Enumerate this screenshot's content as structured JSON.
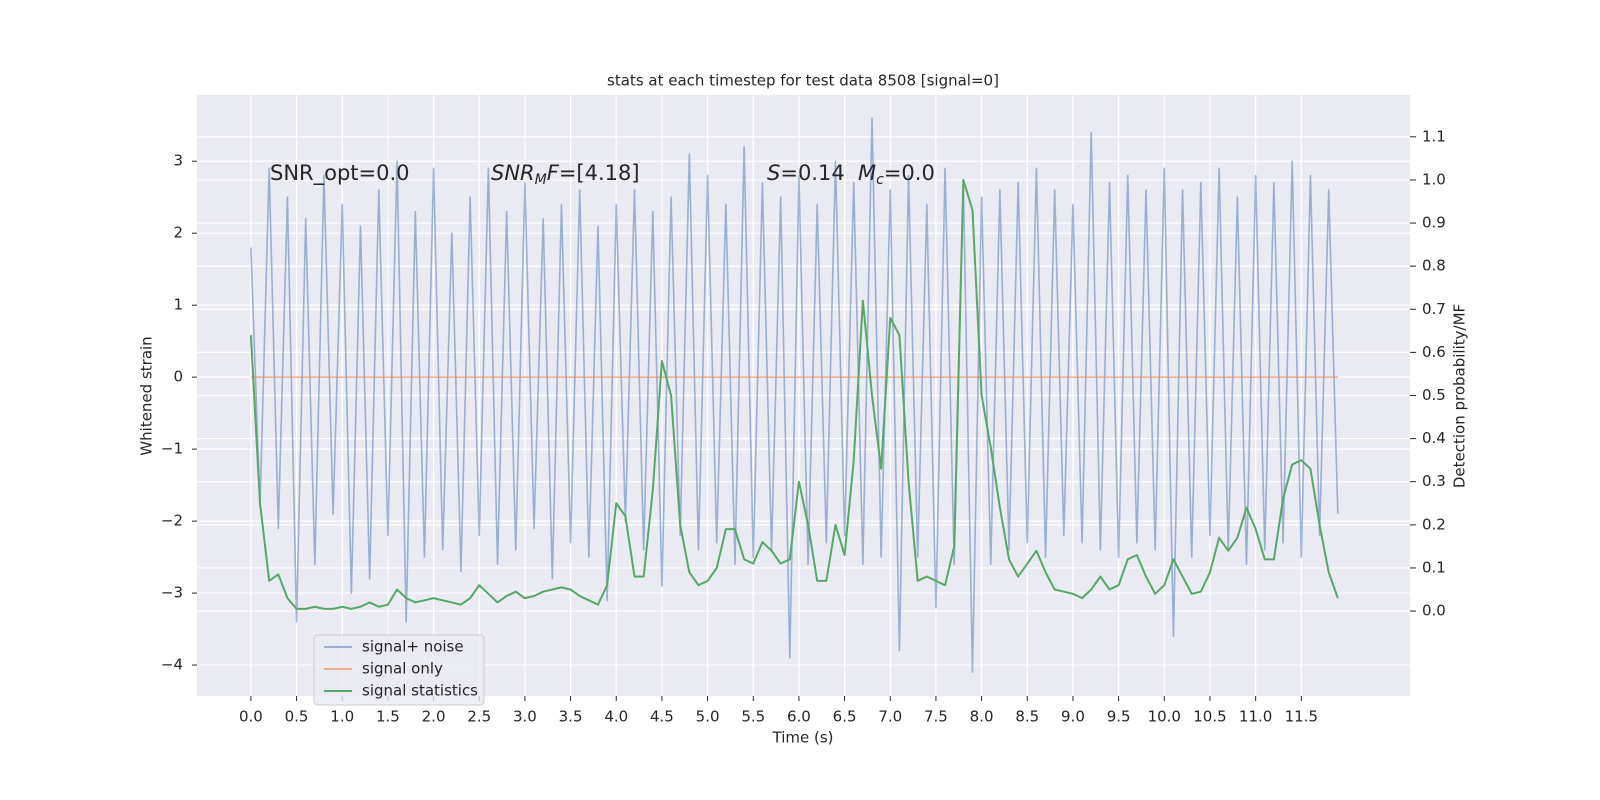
{
  "chart_data": {
    "type": "line",
    "title": "stats at each timestep for test data 8508 [signal=0]",
    "x_label": "Time (s)",
    "y_label": "Whitened strain",
    "y2_label": "Detection probability/MF",
    "x": [
      0,
      0.1,
      0.2,
      0.3,
      0.4,
      0.5,
      0.6,
      0.7,
      0.8,
      0.9,
      1,
      1.1,
      1.2,
      1.3,
      1.4,
      1.5,
      1.6,
      1.7,
      1.8,
      1.9,
      2,
      2.1,
      2.2,
      2.3,
      2.4,
      2.5,
      2.6,
      2.7,
      2.8,
      2.9,
      3,
      3.1,
      3.2,
      3.3,
      3.4,
      3.5,
      3.6,
      3.7,
      3.8,
      3.9,
      4,
      4.1,
      4.2,
      4.3,
      4.4,
      4.5,
      4.6,
      4.7,
      4.8,
      4.9,
      5,
      5.1,
      5.2,
      5.3,
      5.4,
      5.5,
      5.6,
      5.7,
      5.8,
      5.9,
      6,
      6.1,
      6.2,
      6.3,
      6.4,
      6.5,
      6.6,
      6.7,
      6.8,
      6.9,
      7,
      7.1,
      7.2,
      7.3,
      7.4,
      7.5,
      7.6,
      7.7,
      7.8,
      7.9,
      8,
      8.1,
      8.2,
      8.3,
      8.4,
      8.5,
      8.6,
      8.7,
      8.8,
      8.9,
      9,
      9.1,
      9.2,
      9.3,
      9.4,
      9.5,
      9.6,
      9.7,
      9.8,
      9.9,
      10,
      10.1,
      10.2,
      10.3,
      10.4,
      10.5,
      10.6,
      10.7,
      10.8,
      10.9,
      11,
      11.1,
      11.2,
      11.3,
      11.4,
      11.5,
      11.6,
      11.7,
      11.8,
      11.9
    ],
    "series": [
      {
        "name": "signal+ noise",
        "color": "#4c72b0",
        "opacity": 0.5,
        "values": [
          1.8,
          -1.8,
          2.9,
          -2.1,
          2.5,
          -3.4,
          2.2,
          -2.6,
          2.8,
          -1.9,
          2.4,
          -3.0,
          2.1,
          -2.8,
          2.6,
          -2.2,
          3.0,
          -3.4,
          2.3,
          -2.5,
          2.9,
          -2.4,
          2.0,
          -2.7,
          2.5,
          -2.2,
          2.9,
          -2.6,
          2.3,
          -2.4,
          2.7,
          -2.1,
          2.2,
          -2.8,
          2.4,
          -2.3,
          2.6,
          -2.5,
          2.1,
          -3.1,
          2.4,
          -2.0,
          2.6,
          -2.4,
          2.3,
          -2.9,
          2.5,
          -2.2,
          3.1,
          -2.4,
          2.8,
          -2.3,
          2.4,
          -2.6,
          3.2,
          -2.5,
          2.7,
          -2.4,
          2.5,
          -3.9,
          2.8,
          -2.6,
          2.4,
          -2.3,
          3.0,
          -2.2,
          2.7,
          -2.6,
          3.6,
          -2.5,
          2.6,
          -3.8,
          2.8,
          -2.5,
          2.4,
          -3.2,
          2.9,
          -2.6,
          2.7,
          -4.1,
          2.5,
          -2.6,
          2.6,
          -2.4,
          2.7,
          -2.3,
          2.9,
          -2.5,
          2.6,
          -2.2,
          2.4,
          -2.3,
          3.4,
          -2.4,
          2.7,
          -2.5,
          2.8,
          -2.3,
          2.6,
          -2.4,
          2.9,
          -3.6,
          2.6,
          -2.5,
          2.7,
          -2.2,
          2.9,
          -2.4,
          2.5,
          -2.6,
          2.8,
          -2.4,
          2.7,
          -2.3,
          3.0,
          -2.5,
          2.8,
          -2.2,
          2.6,
          -1.9
        ]
      },
      {
        "name": "signal only",
        "color": "#dd8452",
        "opacity": 0.6,
        "x": [
          0,
          11.9
        ],
        "values": [
          0,
          0
        ]
      },
      {
        "name": "signal statistics",
        "color": "#55a868",
        "opacity": 1,
        "axis": "y2",
        "values": [
          0.64,
          0.25,
          0.07,
          0.085,
          0.03,
          0.005,
          0.005,
          0.01,
          0.005,
          0.005,
          0.01,
          0.005,
          0.01,
          0.02,
          0.01,
          0.015,
          0.05,
          0.03,
          0.02,
          0.025,
          0.03,
          0.025,
          0.02,
          0.015,
          0.03,
          0.06,
          0.04,
          0.02,
          0.035,
          0.045,
          0.03,
          0.035,
          0.045,
          0.05,
          0.055,
          0.05,
          0.035,
          0.025,
          0.015,
          0.06,
          0.25,
          0.22,
          0.08,
          0.08,
          0.28,
          0.58,
          0.5,
          0.2,
          0.09,
          0.06,
          0.07,
          0.1,
          0.19,
          0.19,
          0.12,
          0.11,
          0.16,
          0.14,
          0.11,
          0.12,
          0.3,
          0.2,
          0.07,
          0.07,
          0.2,
          0.13,
          0.35,
          0.72,
          0.5,
          0.33,
          0.68,
          0.64,
          0.3,
          0.07,
          0.08,
          0.07,
          0.06,
          0.15,
          1.0,
          0.93,
          0.5,
          0.38,
          0.24,
          0.12,
          0.08,
          0.11,
          0.14,
          0.09,
          0.05,
          0.045,
          0.04,
          0.03,
          0.05,
          0.08,
          0.05,
          0.06,
          0.12,
          0.13,
          0.08,
          0.04,
          0.06,
          0.12,
          0.08,
          0.04,
          0.045,
          0.09,
          0.17,
          0.14,
          0.17,
          0.24,
          0.19,
          0.12,
          0.12,
          0.26,
          0.34,
          0.35,
          0.33,
          0.2,
          0.09,
          0.03
        ]
      }
    ],
    "annotations": [
      [
        {
          "text": "SNR_opt=0.0"
        }
      ],
      [
        {
          "text": "SNR",
          "italic": true
        },
        {
          "text": "M",
          "italic": true,
          "sub": true
        },
        {
          "text": "F",
          "italic": true
        },
        {
          "text": "=[4.18]"
        }
      ],
      [
        {
          "text": "S",
          "italic": true
        },
        {
          "text": "=0.14"
        }
      ],
      [
        {
          "text": "M",
          "italic": true
        },
        {
          "text": "c",
          "italic": true,
          "sub": true
        },
        {
          "text": "=0.0"
        }
      ]
    ],
    "xlim": [
      -0.59,
      12.69
    ],
    "ylim": [
      -4.43,
      3.92
    ],
    "y2lim": [
      -0.197,
      1.197
    ],
    "xticks": [
      {
        "value": 0,
        "label": "0.0"
      },
      0.5,
      {
        "value": 1,
        "label": "1.0"
      },
      1.5,
      {
        "value": 2,
        "label": "2.0"
      },
      2.5,
      {
        "value": 3,
        "label": "3.0"
      },
      3.5,
      {
        "value": 4,
        "label": "4.0"
      },
      4.5,
      {
        "value": 5,
        "label": "5.0"
      },
      5.5,
      {
        "value": 6,
        "label": "6.0"
      },
      6.5,
      {
        "value": 7,
        "label": "7.0"
      },
      7.5,
      {
        "value": 8,
        "label": "8.0"
      },
      8.5,
      {
        "value": 9,
        "label": "9.0"
      },
      9.5,
      {
        "value": 10,
        "label": "10.0"
      },
      10.5,
      {
        "value": 11,
        "label": "11.0"
      },
      11.5
    ],
    "yticks": [
      {
        "value": -4,
        "label": "−4"
      },
      {
        "value": -3,
        "label": "−3"
      },
      {
        "value": -2,
        "label": "−2"
      },
      {
        "value": -1,
        "label": "−1"
      },
      0,
      1,
      2,
      3
    ],
    "y2ticks": [
      {
        "value": 0,
        "label": "0.0"
      },
      0.1,
      0.2,
      0.3,
      0.4,
      0.5,
      0.6,
      0.7,
      0.8,
      0.9,
      {
        "value": 1,
        "label": "1.0"
      },
      1.1
    ],
    "grid": true,
    "legend_loc": "lower left",
    "background": "#eaeaf2"
  }
}
